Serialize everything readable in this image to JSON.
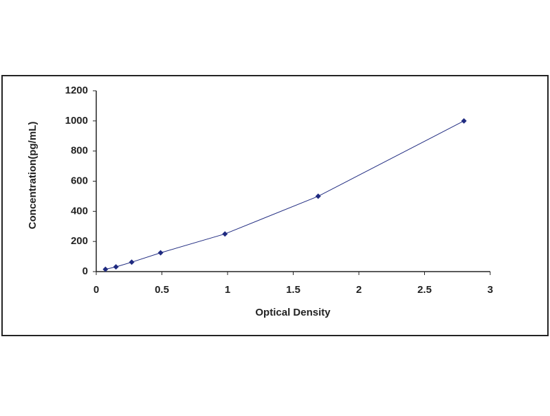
{
  "chart_data": {
    "type": "scatter",
    "x_label": "Optical Density",
    "y_label": "Concentration(pg/mL)",
    "xlim": [
      0,
      3
    ],
    "xticks": [
      0,
      0.5,
      1,
      1.5,
      2,
      2.5,
      3
    ],
    "ylim": [
      0,
      1200
    ],
    "yticks": [
      0,
      200,
      400,
      600,
      800,
      1000,
      1200
    ],
    "series": [
      {
        "color": "#1f2a80",
        "line": true,
        "x": [
          0.07,
          0.15,
          0.27,
          0.49,
          0.98,
          1.69,
          2.8
        ],
        "values": [
          15.6,
          31.25,
          62.5,
          125,
          250,
          500,
          1000
        ]
      }
    ]
  }
}
